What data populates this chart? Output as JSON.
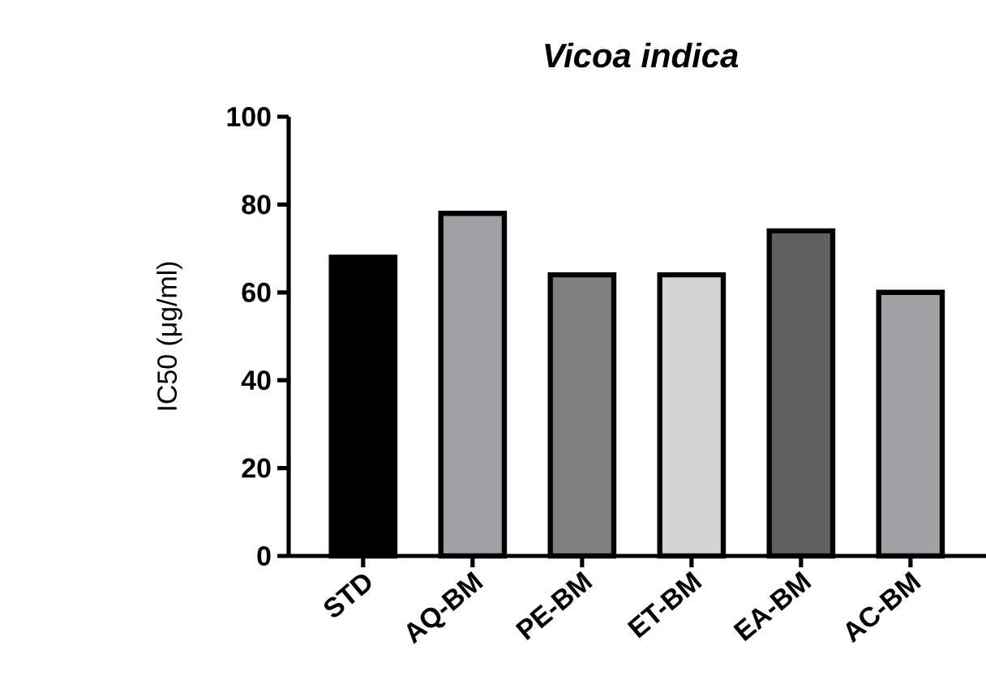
{
  "chart_data": {
    "type": "bar",
    "title": "Vicoa indica",
    "ylabel": "IC50 (μg/ml)",
    "categories": [
      "STD",
      "AQ-BM",
      "PE-BM",
      "ET-BM",
      "EA-BM",
      "AC-BM"
    ],
    "values": [
      68,
      78,
      64,
      64,
      74,
      60
    ],
    "colors": [
      "#000000",
      "#a0a0a4",
      "#808080",
      "#d4d4d4",
      "#606060",
      "#a0a0a4"
    ],
    "ylim": [
      0,
      100
    ],
    "yticks": [
      0,
      20,
      40,
      60,
      80,
      100
    ]
  }
}
